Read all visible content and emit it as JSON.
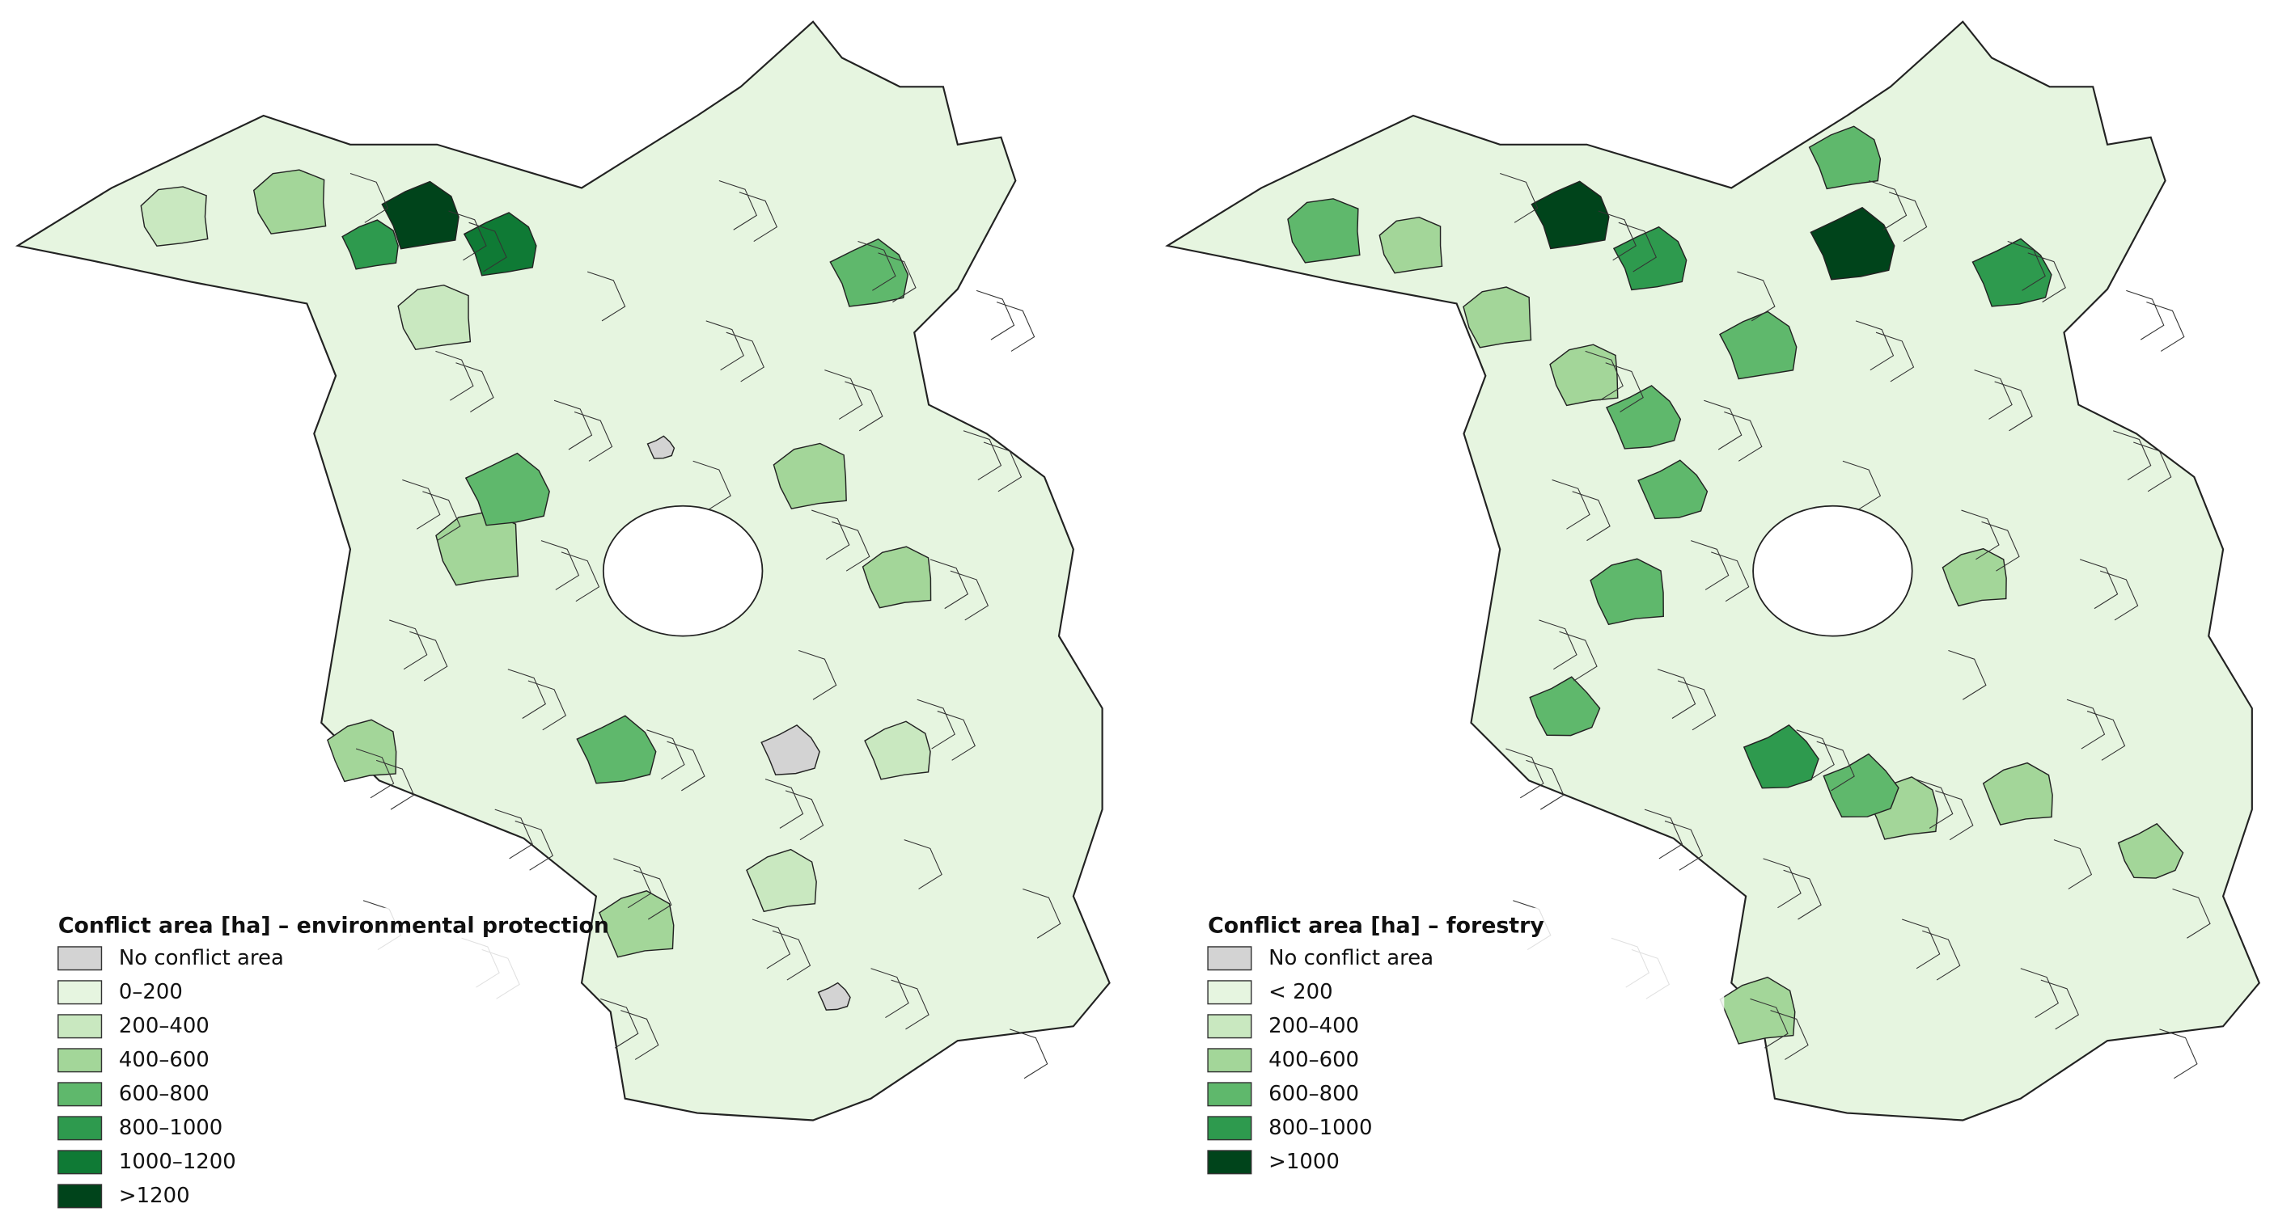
{
  "maps": [
    {
      "legend": {
        "title": "Conflict area [ha] – environmental protection",
        "items": [
          {
            "label": "No conflict area",
            "color": "#d3d3d3"
          },
          {
            "label": "0–200",
            "color": "#e6f5e0"
          },
          {
            "label": "200–400",
            "color": "#c9e8c0"
          },
          {
            "label": "400–600",
            "color": "#a3d699"
          },
          {
            "label": "600–800",
            "color": "#5fb86c"
          },
          {
            "label": "800–1000",
            "color": "#2e9a4e"
          },
          {
            "label": "1000–1200",
            "color": "#0f7a35"
          },
          {
            "label": ">1200",
            "color": "#00441b"
          }
        ]
      }
    },
    {
      "legend": {
        "title": "Conflict area [ha] – forestry",
        "items": [
          {
            "label": "No conflict area",
            "color": "#d3d3d3"
          },
          {
            "label": "< 200",
            "color": "#e6f5e0"
          },
          {
            "label": "200–400",
            "color": "#c9e8c0"
          },
          {
            "label": "400–600",
            "color": "#a3d699"
          },
          {
            "label": "600–800",
            "color": "#5fb86c"
          },
          {
            "label": "800–1000",
            "color": "#2e9a4e"
          },
          {
            "label": ">1000",
            "color": "#00441b"
          }
        ]
      }
    }
  ]
}
